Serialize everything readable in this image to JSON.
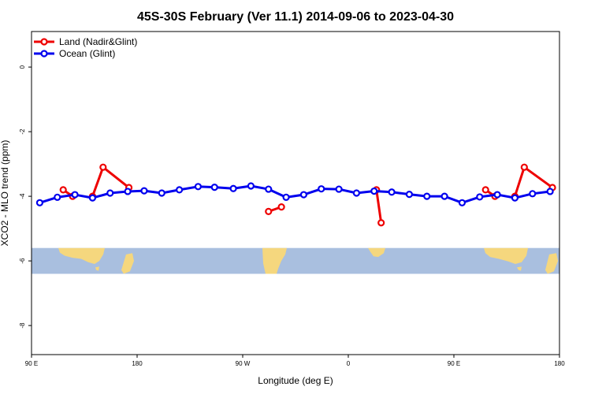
{
  "chart_data": {
    "type": "line",
    "title": "45S-30S February (Ver 11.1)   2014-09-06 to 2023-04-30",
    "xlabel": "Longitude (deg E)",
    "ylabel": "XCO2 - MLO trend (ppm)",
    "xlim": [
      90,
      540
    ],
    "ylim": [
      -8.9,
      1.1
    ],
    "x_ticks": [
      {
        "value": 90,
        "label": "90 E"
      },
      {
        "value": 180,
        "label": "180"
      },
      {
        "value": 270,
        "label": "90 W"
      },
      {
        "value": 360,
        "label": "0"
      },
      {
        "value": 450,
        "label": "90 E"
      },
      {
        "value": 540,
        "label": "180"
      }
    ],
    "y_ticks": [
      {
        "value": 0,
        "label": "0"
      },
      {
        "value": -2,
        "label": "-2"
      },
      {
        "value": -4,
        "label": "-4"
      },
      {
        "value": -6,
        "label": "-6"
      },
      {
        "value": -8,
        "label": "-8"
      }
    ],
    "legend_position": "top-left",
    "map_band": {
      "y_top": -5.6,
      "y_bottom": -6.4,
      "ocean_color": "#a9bfdf",
      "land_color": "#f5d77e"
    },
    "series": [
      {
        "name": "Land (Nadir&Glint)",
        "color": "#ee0000",
        "segments": [
          [
            [
              117,
              -3.8
            ],
            [
              125,
              -4.0
            ]
          ],
          [
            [
              142,
              -4.0
            ],
            [
              151,
              -3.1
            ],
            [
              173,
              -3.73
            ]
          ],
          [
            [
              292,
              -4.47
            ],
            [
              303,
              -4.33
            ]
          ],
          [
            [
              384,
              -3.8
            ],
            [
              388,
              -4.82
            ]
          ],
          [
            [
              477,
              -3.8
            ],
            [
              485,
              -4.0
            ]
          ],
          [
            [
              502,
              -4.0
            ],
            [
              510,
              -3.1
            ],
            [
              534,
              -3.73
            ]
          ]
        ]
      },
      {
        "name": "Ocean (Glint)",
        "color": "#0000ee",
        "points": [
          [
            97,
            -4.2
          ],
          [
            112,
            -4.03
          ],
          [
            127,
            -3.95
          ],
          [
            142,
            -4.05
          ],
          [
            157,
            -3.9
          ],
          [
            172,
            -3.85
          ],
          [
            186,
            -3.83
          ],
          [
            201,
            -3.9
          ],
          [
            216,
            -3.8
          ],
          [
            232,
            -3.7
          ],
          [
            246,
            -3.72
          ],
          [
            262,
            -3.76
          ],
          [
            277,
            -3.68
          ],
          [
            292,
            -3.78
          ],
          [
            307,
            -4.03
          ],
          [
            322,
            -3.95
          ],
          [
            337,
            -3.77
          ],
          [
            352,
            -3.78
          ],
          [
            367,
            -3.9
          ],
          [
            382,
            -3.84
          ],
          [
            397,
            -3.87
          ],
          [
            412,
            -3.94
          ],
          [
            427,
            -4.0
          ],
          [
            442,
            -4.0
          ],
          [
            457,
            -4.2
          ],
          [
            472,
            -4.02
          ],
          [
            487,
            -3.95
          ],
          [
            502,
            -4.05
          ],
          [
            517,
            -3.92
          ],
          [
            532,
            -3.85
          ]
        ]
      }
    ]
  }
}
